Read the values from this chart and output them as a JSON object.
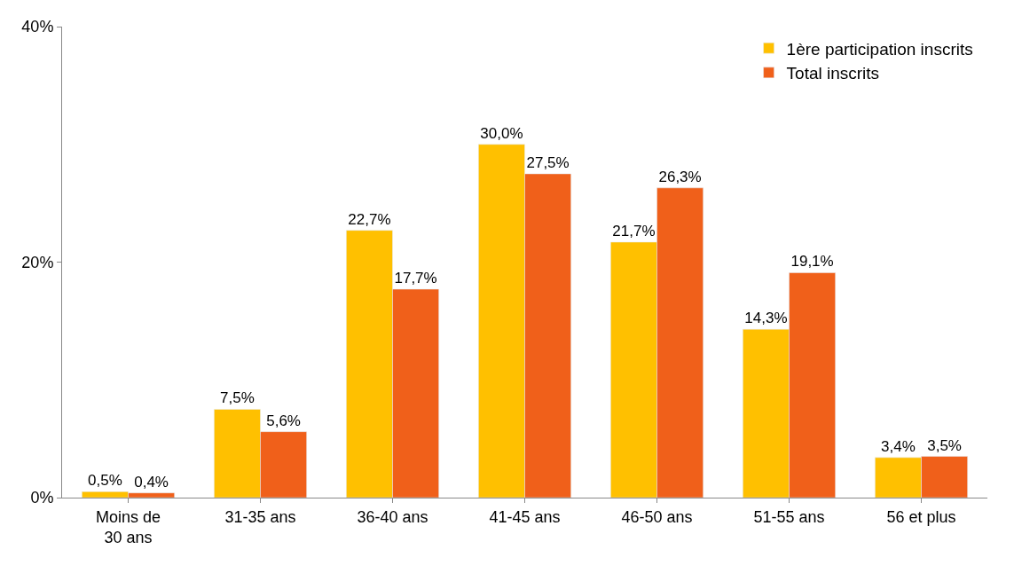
{
  "chart_data": {
    "type": "bar",
    "categories": [
      "Moins de 30 ans",
      "31-35 ans",
      "36-40 ans",
      "41-45 ans",
      "46-50 ans",
      "51-55 ans",
      "56 et plus"
    ],
    "series": [
      {
        "name": "1ère participation inscrits",
        "color": "#ffc000",
        "values": [
          0.5,
          7.5,
          22.7,
          30.0,
          21.7,
          14.3,
          3.4
        ],
        "value_labels": [
          "0,5%",
          "7,5%",
          "22,7%",
          "30,0%",
          "21,7%",
          "14,3%",
          "3,4%"
        ]
      },
      {
        "name": "Total inscrits",
        "color": "#f0601a",
        "values": [
          0.4,
          5.6,
          17.7,
          27.5,
          26.3,
          19.1,
          3.5
        ],
        "value_labels": [
          "0,4%",
          "5,6%",
          "17,7%",
          "27,5%",
          "26,3%",
          "19,1%",
          "3,5%"
        ]
      }
    ],
    "ylim": [
      0,
      40
    ],
    "yticks": [
      {
        "value": 0,
        "label": "0%"
      },
      {
        "value": 20,
        "label": "20%"
      },
      {
        "value": 40,
        "label": "40%"
      }
    ],
    "legend": "top right"
  }
}
